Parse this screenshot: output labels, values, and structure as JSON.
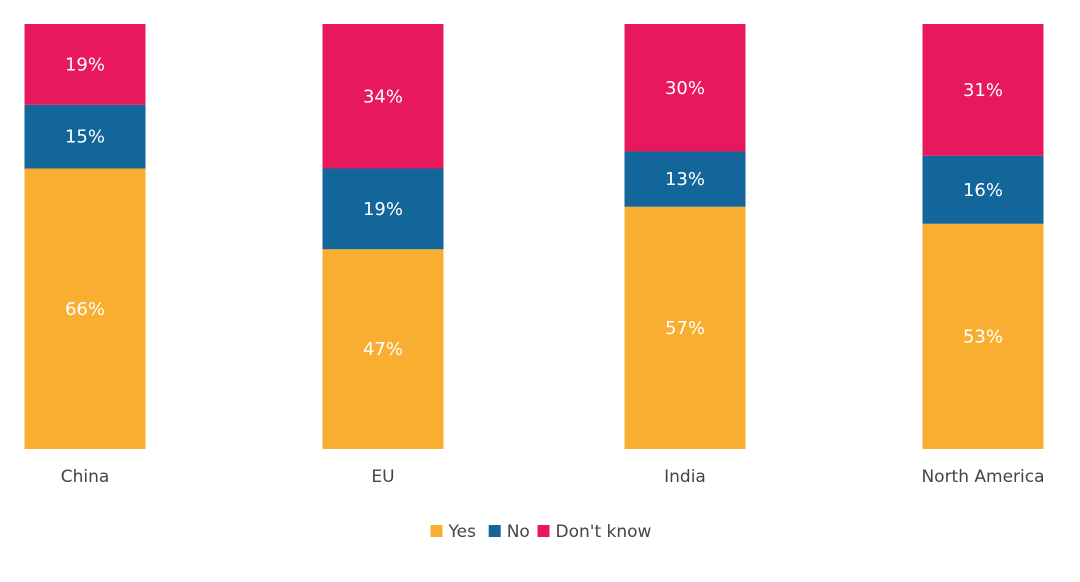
{
  "chart_data": {
    "type": "bar",
    "stacked": true,
    "percent_stacked": true,
    "categories": [
      "China",
      "EU",
      "India",
      "North America"
    ],
    "series": [
      {
        "name": "Yes",
        "color": "#F8AF31",
        "values": [
          66,
          47,
          57,
          53
        ]
      },
      {
        "name": "No",
        "color": "#13669A",
        "values": [
          15,
          19,
          13,
          16
        ]
      },
      {
        "name": "Don't know",
        "color": "#E8185F",
        "values": [
          19,
          34,
          30,
          31
        ]
      }
    ],
    "value_suffix": "%",
    "ylim": [
      0,
      100
    ],
    "grid": false,
    "legend_position": "bottom-center",
    "title": "",
    "xlabel": "",
    "ylabel": ""
  }
}
